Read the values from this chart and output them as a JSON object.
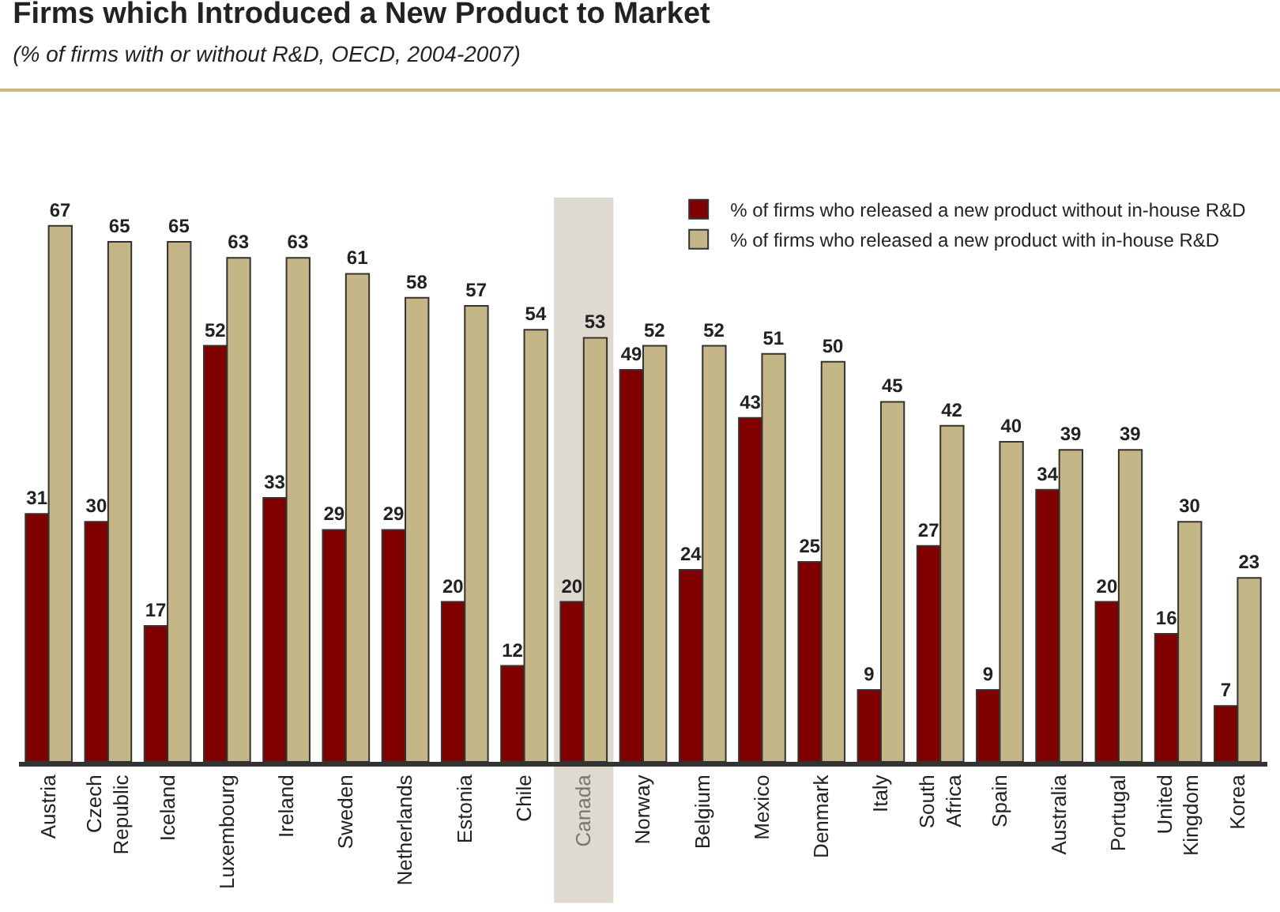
{
  "chart_data": {
    "type": "bar",
    "title": "Firms which Introduced a New Product to Market",
    "subtitle": "(% of firms with or without R&D, OECD, 2004-2007)",
    "categories": [
      "Austria",
      "Czech Republic",
      "Iceland",
      "Luxembourg",
      "Ireland",
      "Sweden",
      "Netherlands",
      "Estonia",
      "Chile",
      "Canada",
      "Norway",
      "Belgium",
      "Mexico",
      "Denmark",
      "Italy",
      "South Africa",
      "Spain",
      "Australia",
      "Portugal",
      "United Kingdom",
      "Korea"
    ],
    "series": [
      {
        "name": "% of firms who released a new product without in-house R&D",
        "color": "#800000",
        "values": [
          31,
          30,
          17,
          52,
          33,
          29,
          29,
          20,
          12,
          20,
          49,
          24,
          43,
          25,
          9,
          27,
          9,
          34,
          20,
          16,
          7
        ]
      },
      {
        "name": "% of firms who released a new product with in-house R&D",
        "color": "#c4b687",
        "values": [
          67,
          65,
          65,
          63,
          63,
          61,
          58,
          57,
          54,
          53,
          52,
          52,
          51,
          50,
          45,
          42,
          40,
          39,
          39,
          30,
          23
        ]
      }
    ],
    "data_labels": true,
    "legend": "top right",
    "grid": false,
    "bands": [
      {
        "axis": "x",
        "from": "Canada",
        "to": "Canada",
        "color": "#dedad0"
      }
    ]
  }
}
